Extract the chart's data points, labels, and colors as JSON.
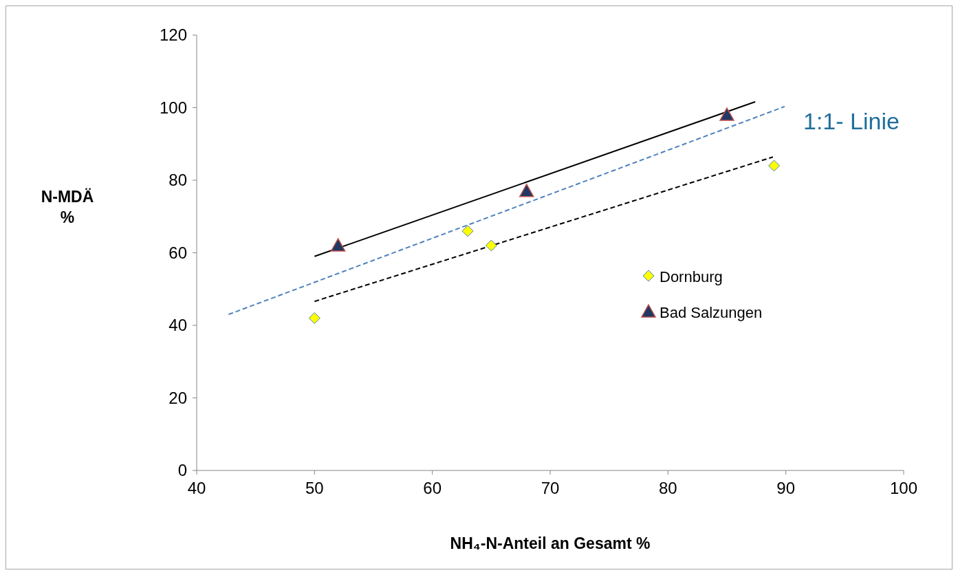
{
  "chart_data": {
    "type": "scatter",
    "xlabel": "NH₄-N-Anteil an Gesamt %",
    "ylabel": "N-MDÄ\n%",
    "xlim": [
      40,
      100
    ],
    "xticks": [
      40,
      50,
      60,
      70,
      80,
      90,
      100
    ],
    "ylim": [
      0,
      120
    ],
    "yticks": [
      0,
      20,
      40,
      60,
      80,
      100,
      120
    ],
    "grid": false,
    "legend": "right",
    "annotations": [
      "1:1- Linie"
    ],
    "series": [
      {
        "type": "line",
        "color": "#000000",
        "line_style": "solid",
        "marker": "none",
        "x": [
          50,
          87.4
        ],
        "values": [
          59,
          101.6
        ]
      },
      {
        "type": "line",
        "color": "#000000",
        "line_style": "dashed",
        "marker": "none",
        "x": [
          50,
          88.9
        ],
        "values": [
          46.6,
          86.4
        ]
      },
      {
        "type": "line",
        "color": "#4f81bd",
        "line_style": "dashed",
        "marker": "none",
        "x": [
          42.7,
          89.9
        ],
        "values": [
          43,
          100.3
        ]
      },
      {
        "name": "Dornburg",
        "marker": "diamond",
        "color": "#ffff00",
        "x": [
          50,
          63,
          65,
          89
        ],
        "values": [
          42,
          66,
          62,
          84
        ]
      },
      {
        "name": "Bad Salzungen",
        "marker": "triangle",
        "color": "#1f3864",
        "x": [
          52,
          68,
          85
        ],
        "values": [
          62,
          77,
          98
        ]
      }
    ]
  }
}
